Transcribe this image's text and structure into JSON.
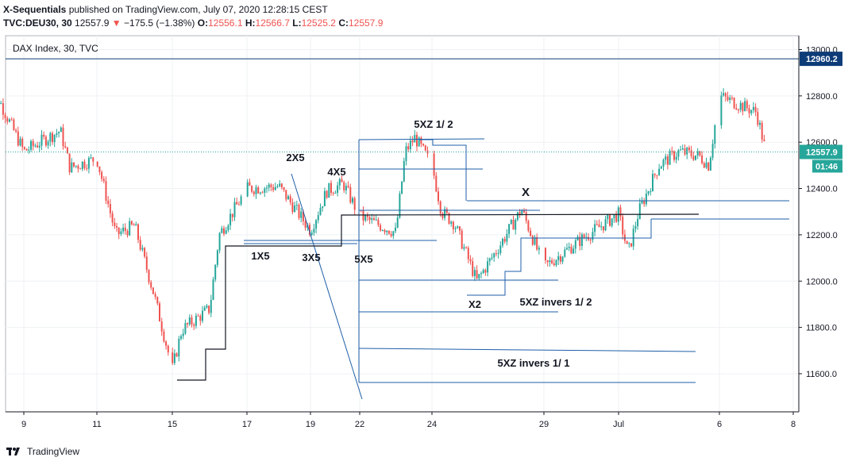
{
  "header": {
    "author": "X-Sequentials",
    "published_text": "published on TradingView.com, July 07, 2020 12:28:15 CEST",
    "symbol": "TVC:DEU30, 30",
    "last": "12557.9",
    "change": "−175.5 (−1.38%)",
    "change_arrow": "down-triangle-icon",
    "o_label": "O:",
    "o_value": "12556.1",
    "h_label": "H:",
    "h_value": "12566.7",
    "l_label": "L:",
    "l_value": "12525.2",
    "c_label": "C:",
    "c_value": "12557.9"
  },
  "footer": {
    "brand": "TradingView",
    "logo_icon": "tradingview-logo-icon"
  },
  "colors": {
    "up": "#26a69a",
    "down": "#ef5350",
    "drawing": "#1e5fa8",
    "axis_border": "#131722",
    "tag_bg": "#0d3c78",
    "price_line": "#26a69a"
  },
  "chart_data": {
    "type": "candlestick",
    "title": "DAX Index, 30, TVC",
    "ylim": [
      11500,
      13100
    ],
    "yticks": [
      "13000.0",
      "12800.0",
      "12600.0",
      "12400.0",
      "12200.0",
      "12000.0",
      "11800.0",
      "11600.0"
    ],
    "xticks": [
      "9",
      "11",
      "15",
      "17",
      "19",
      "22",
      "24",
      "29",
      "Jul",
      "6",
      "8"
    ],
    "grid": true,
    "price_tags": [
      {
        "label": "12960.2",
        "value": 12960.2,
        "style": "line"
      },
      {
        "label": "12557.9",
        "value": 12557.9,
        "style": "current",
        "countdown": "01:46"
      }
    ],
    "annotations": [
      "2X5",
      "4X5",
      "5XZ 1/ 2",
      "X",
      "1X5",
      "3X5",
      "5X5",
      "X2",
      "5XZ invers 1/ 2",
      "5XZ invers 1/ 1"
    ],
    "path": [
      {
        "d": "2020-06-08",
        "v": 12880
      },
      {
        "d": "2020-06-09",
        "v": 12560
      },
      {
        "d": "2020-06-10",
        "v": 12650
      },
      {
        "d": "2020-06-10",
        "v": 12490
      },
      {
        "d": "2020-06-11",
        "v": 12530
      },
      {
        "d": "2020-06-12",
        "v": 12200
      },
      {
        "d": "2020-06-13",
        "v": 12240
      },
      {
        "d": "2020-06-14",
        "v": 11950
      },
      {
        "d": "2020-06-15",
        "v": 11620
      },
      {
        "d": "2020-06-15",
        "v": 11790
      },
      {
        "d": "2020-06-16",
        "v": 11880
      },
      {
        "d": "2020-06-16",
        "v": 12200
      },
      {
        "d": "2020-06-17",
        "v": 12400
      },
      {
        "d": "2020-06-18",
        "v": 12410
      },
      {
        "d": "2020-06-19",
        "v": 12220
      },
      {
        "d": "2020-06-20",
        "v": 12390
      },
      {
        "d": "2020-06-21",
        "v": 12420
      },
      {
        "d": "2020-06-22",
        "v": 12280
      },
      {
        "d": "2020-06-23",
        "v": 12210
      },
      {
        "d": "2020-06-23",
        "v": 12560
      },
      {
        "d": "2020-06-23",
        "v": 12620
      },
      {
        "d": "2020-06-24",
        "v": 12500
      },
      {
        "d": "2020-06-24",
        "v": 12300
      },
      {
        "d": "2020-06-25",
        "v": 12250
      },
      {
        "d": "2020-06-26",
        "v": 12000
      },
      {
        "d": "2020-06-27",
        "v": 12150
      },
      {
        "d": "2020-06-28",
        "v": 12310
      },
      {
        "d": "2020-06-29",
        "v": 12060
      },
      {
        "d": "2020-06-30",
        "v": 12180
      },
      {
        "d": "2020-07-01",
        "v": 12290
      },
      {
        "d": "2020-07-01",
        "v": 12120
      },
      {
        "d": "2020-07-02",
        "v": 12300
      },
      {
        "d": "2020-07-03",
        "v": 12500
      },
      {
        "d": "2020-07-04",
        "v": 12560
      },
      {
        "d": "2020-07-05",
        "v": 12540
      },
      {
        "d": "2020-07-05",
        "v": 12500
      },
      {
        "d": "2020-07-06",
        "v": 12800
      },
      {
        "d": "2020-07-07",
        "v": 12730
      },
      {
        "d": "2020-07-07",
        "v": 12558
      }
    ]
  }
}
